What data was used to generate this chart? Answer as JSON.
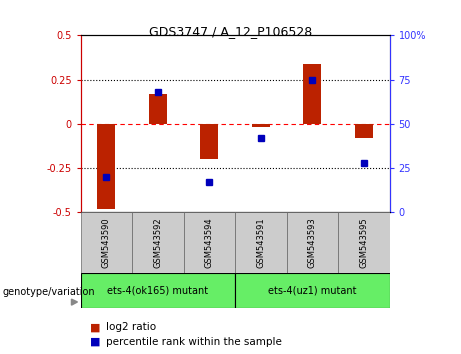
{
  "title": "GDS3747 / A_12_P106528",
  "samples": [
    "GSM543590",
    "GSM543592",
    "GSM543594",
    "GSM543591",
    "GSM543593",
    "GSM543595"
  ],
  "log2_ratio": [
    -0.48,
    0.17,
    -0.2,
    -0.02,
    0.34,
    -0.08
  ],
  "percentile_rank": [
    20,
    68,
    17,
    42,
    75,
    28
  ],
  "bar_color": "#bb2200",
  "dot_color": "#0000bb",
  "left_axis_color": "#cc0000",
  "right_axis_color": "#3333ff",
  "ylim_left": [
    -0.5,
    0.5
  ],
  "ylim_right": [
    0,
    100
  ],
  "yticks_left": [
    -0.5,
    -0.25,
    0,
    0.25,
    0.5
  ],
  "ytick_labels_left": [
    "-0.5",
    "-0.25",
    "0",
    "0.25",
    "0.5"
  ],
  "yticks_right": [
    0,
    25,
    50,
    75,
    100
  ],
  "ytick_labels_right": [
    "0",
    "25",
    "50",
    "75",
    "100%"
  ],
  "bar_width": 0.35,
  "tick_label_area_color": "#cccccc",
  "group1_label": "ets-4(ok165) mutant",
  "group2_label": "ets-4(uz1) mutant",
  "group_color": "#66ee66",
  "legend_log2_label": "log2 ratio",
  "legend_pct_label": "percentile rank within the sample",
  "genotype_label": "genotype/variation"
}
